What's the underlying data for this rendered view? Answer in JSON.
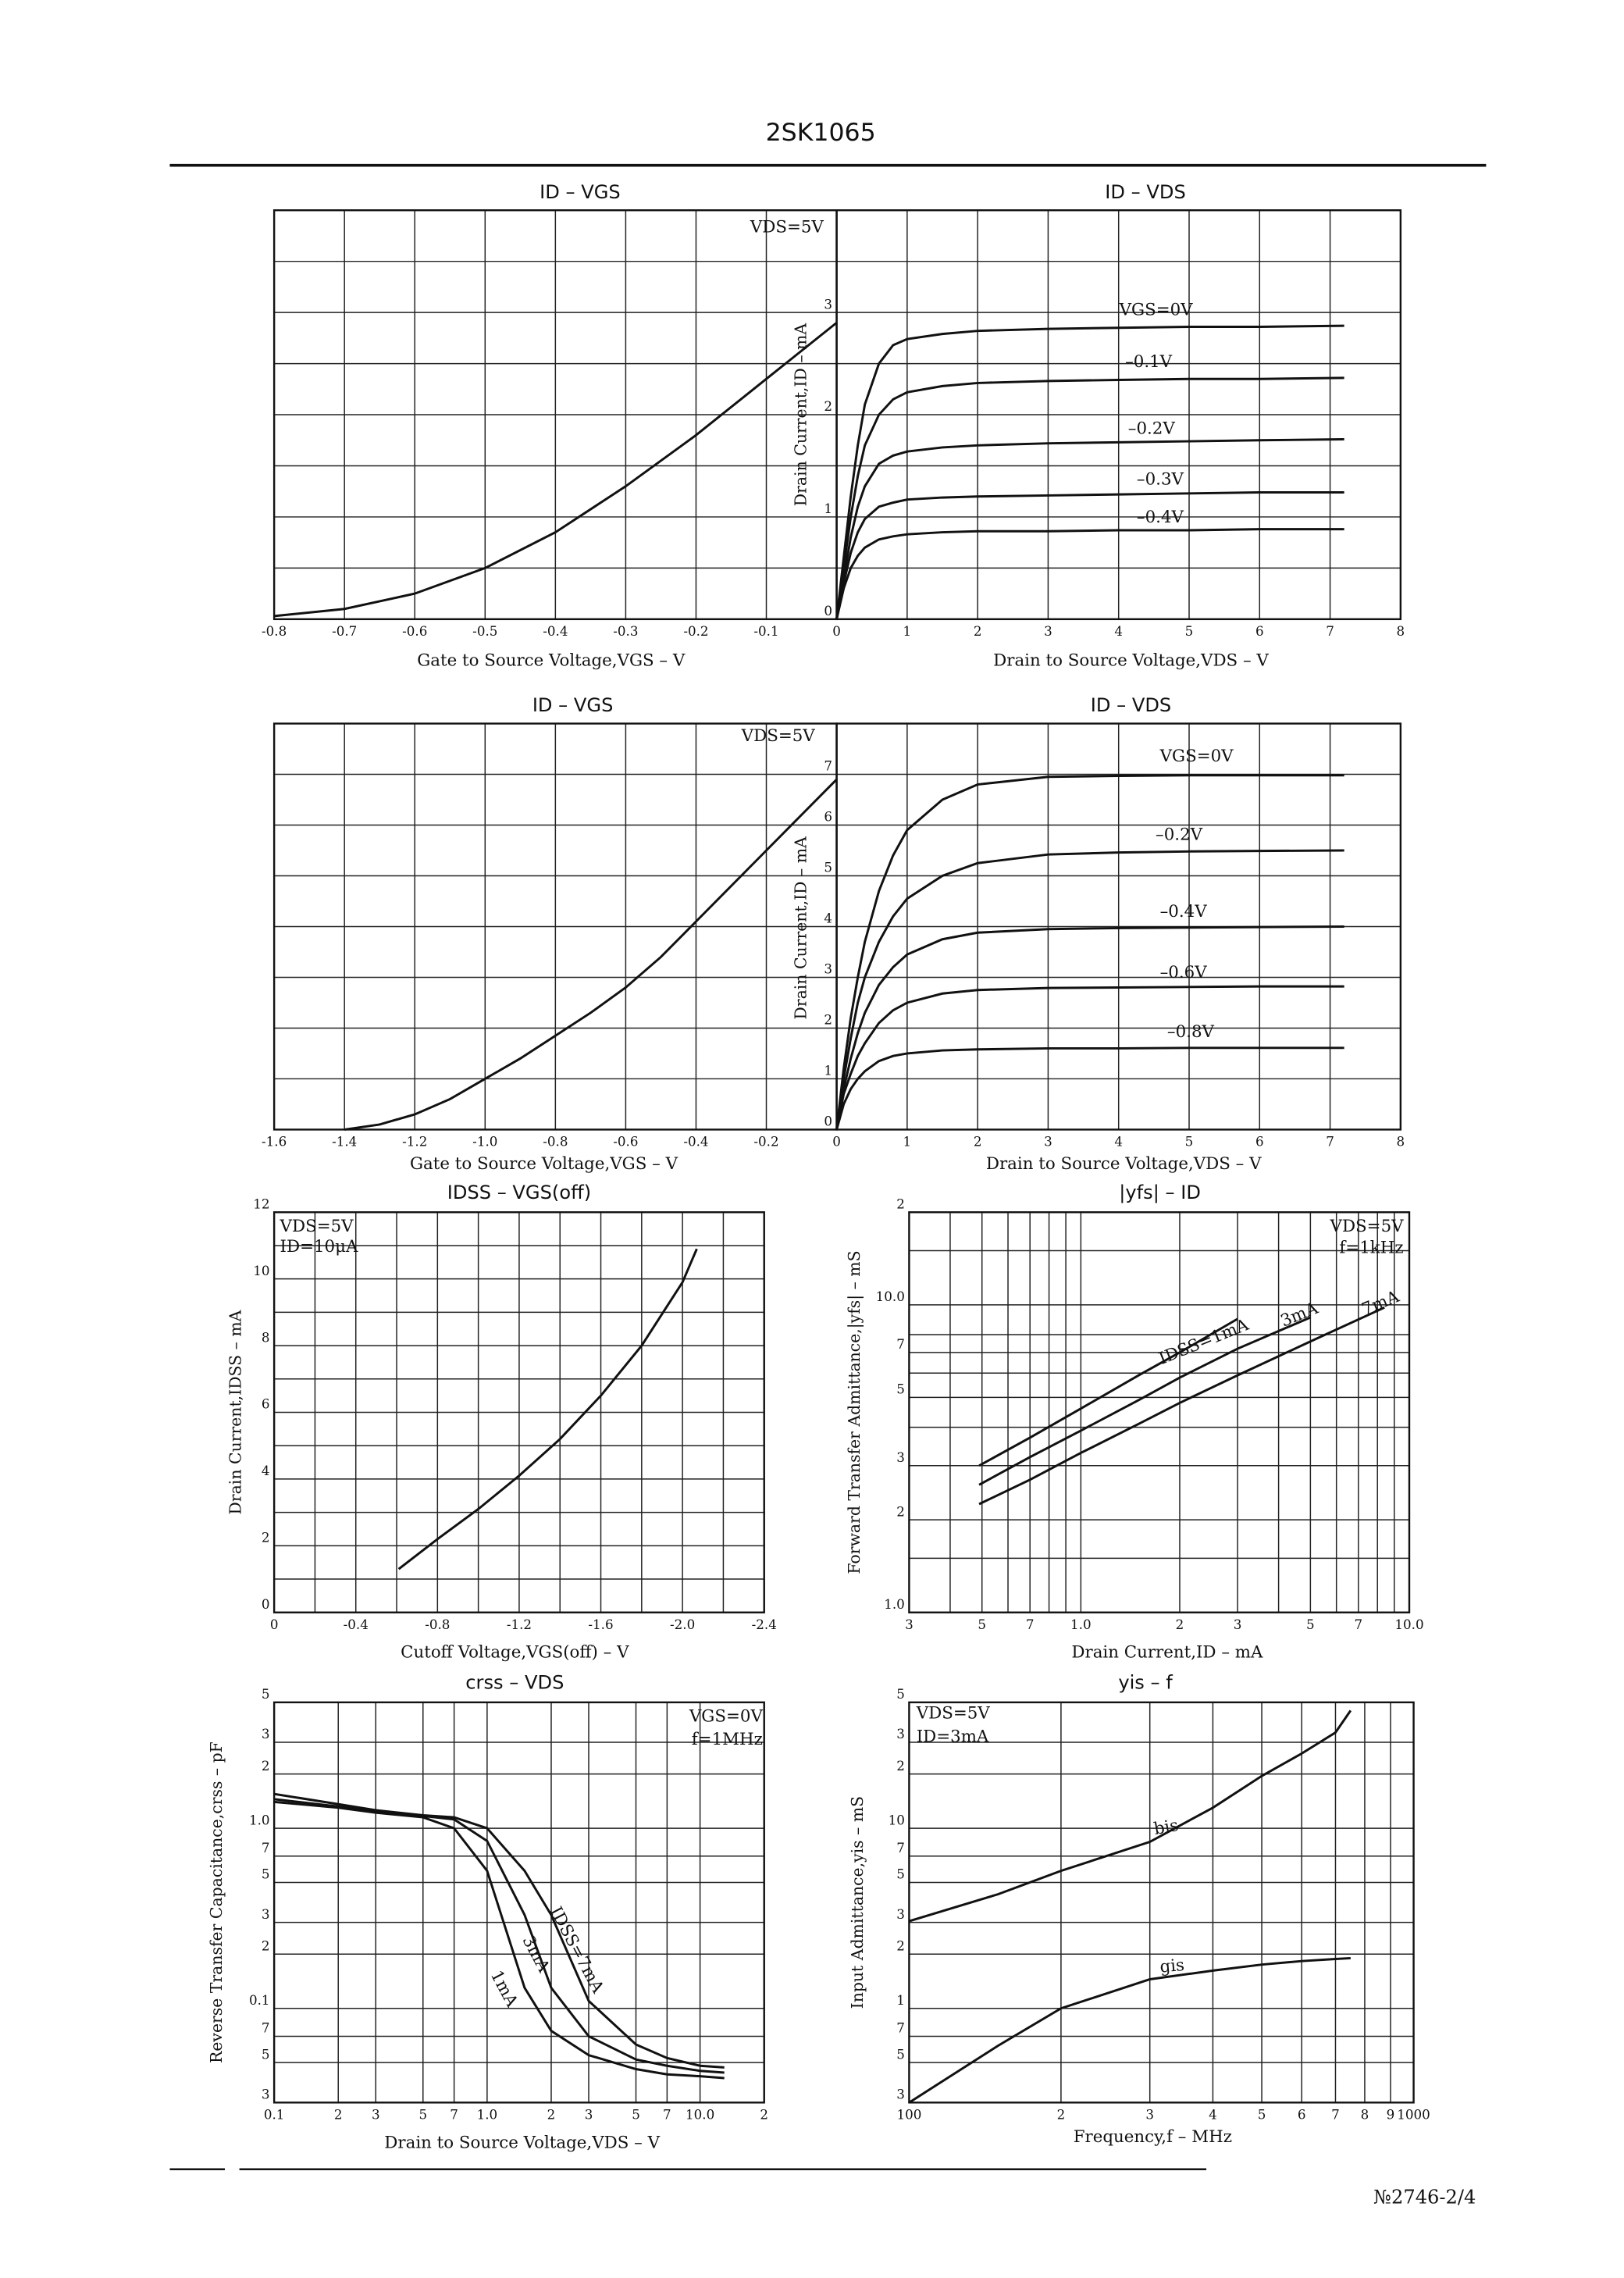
{
  "header": {
    "title": "2SK1065"
  },
  "footer": {
    "page": "№2746-2/4"
  },
  "chart_data": [
    {
      "type": "line",
      "title": "ID – VGS",
      "xlabel": "Gate to Source Voltage,VGS – V",
      "annotations": [
        "VDS=5V"
      ],
      "color": "#111111",
      "grid": true,
      "xlim": [
        -0.8,
        0
      ],
      "ylim": [
        0,
        4
      ],
      "xticks": [
        -0.8,
        -0.7,
        -0.6,
        -0.5,
        -0.4,
        -0.3,
        -0.2,
        -0.1
      ],
      "yticks": [],
      "ygrid": [
        0.5,
        1,
        1.5,
        2,
        2.5,
        3,
        3.5
      ],
      "x": [
        -0.8,
        -0.7,
        -0.6,
        -0.5,
        -0.4,
        -0.3,
        -0.2,
        -0.1,
        0
      ],
      "series": [
        {
          "name": "VDS=5V",
          "values": [
            0.03,
            0.1,
            0.25,
            0.5,
            0.85,
            1.3,
            1.8,
            2.35,
            2.9
          ]
        }
      ]
    },
    {
      "type": "line",
      "title": "ID – VDS",
      "xlabel": "Drain to Source Voltage,VDS – V",
      "ylabel": "Drain Current,ID – mA",
      "color": "#111111",
      "grid": true,
      "xlim": [
        0,
        8
      ],
      "ylim": [
        0,
        4
      ],
      "xticks": [
        0,
        1,
        2,
        3,
        4,
        5,
        6,
        7,
        8
      ],
      "yticks": [
        0,
        1,
        2,
        3
      ],
      "ygrid": [
        0.5,
        1.5,
        2.5,
        3.5
      ],
      "x": [
        0,
        0.1,
        0.2,
        0.3,
        0.4,
        0.6,
        0.8,
        1,
        1.5,
        2,
        3,
        4,
        5,
        6,
        7.2
      ],
      "series": [
        {
          "name": "VGS=0V",
          "values": [
            0,
            0.6,
            1.2,
            1.7,
            2.1,
            2.5,
            2.68,
            2.74,
            2.79,
            2.82,
            2.84,
            2.85,
            2.86,
            2.86,
            2.87
          ]
        },
        {
          "name": "–0.1V",
          "values": [
            0,
            0.5,
            1.0,
            1.4,
            1.7,
            2.0,
            2.15,
            2.22,
            2.28,
            2.31,
            2.33,
            2.34,
            2.35,
            2.35,
            2.36
          ]
        },
        {
          "name": "–0.2V",
          "values": [
            0,
            0.4,
            0.8,
            1.1,
            1.3,
            1.52,
            1.6,
            1.64,
            1.68,
            1.7,
            1.72,
            1.73,
            1.74,
            1.75,
            1.76
          ]
        },
        {
          "name": "–0.3V",
          "values": [
            0,
            0.35,
            0.65,
            0.85,
            0.98,
            1.1,
            1.14,
            1.17,
            1.19,
            1.2,
            1.21,
            1.22,
            1.23,
            1.24,
            1.24
          ]
        },
        {
          "name": "–0.4V",
          "values": [
            0,
            0.3,
            0.5,
            0.62,
            0.7,
            0.78,
            0.81,
            0.83,
            0.85,
            0.86,
            0.86,
            0.87,
            0.87,
            0.88,
            0.88
          ]
        }
      ]
    },
    {
      "type": "line",
      "title": "ID – VGS",
      "xlabel": "Gate to Source Voltage,VGS – V",
      "annotations": [
        "VDS=5V"
      ],
      "color": "#111111",
      "grid": true,
      "xlim": [
        -1.6,
        0
      ],
      "ylim": [
        0,
        8
      ],
      "xticks": [
        -1.6,
        -1.4,
        -1.2,
        {
          "value": -1,
          "label": "-1.0"
        },
        -0.8,
        -0.6,
        -0.4,
        -0.2
      ],
      "yticks": [],
      "ygrid": [
        1,
        2,
        3,
        4,
        5,
        6,
        7
      ],
      "x": [
        -1.4,
        -1.3,
        -1.2,
        -1.1,
        -1.0,
        -0.9,
        -0.8,
        -0.7,
        -0.6,
        -0.5,
        -0.4,
        -0.3,
        -0.2,
        -0.1,
        0
      ],
      "series": [
        {
          "name": "VDS=5V",
          "values": [
            0,
            0.1,
            0.3,
            0.6,
            1.0,
            1.4,
            1.85,
            2.3,
            2.8,
            3.4,
            4.1,
            4.8,
            5.5,
            6.2,
            6.9
          ]
        }
      ]
    },
    {
      "type": "line",
      "title": "ID – VDS",
      "xlabel": "Drain to Source Voltage,VDS – V",
      "ylabel": "Drain Current,ID – mA",
      "color": "#111111",
      "grid": true,
      "xlim": [
        0,
        8
      ],
      "ylim": [
        0,
        8
      ],
      "xticks": [
        0,
        1,
        2,
        3,
        4,
        5,
        6,
        7,
        8
      ],
      "yticks": [
        0,
        1,
        2,
        3,
        4,
        5,
        6,
        7
      ],
      "x": [
        0,
        0.1,
        0.2,
        0.3,
        0.4,
        0.6,
        0.8,
        1,
        1.5,
        2,
        3,
        4,
        5,
        6,
        7.2
      ],
      "series": [
        {
          "name": "VGS=0V",
          "values": [
            0,
            1.2,
            2.2,
            3.0,
            3.7,
            4.7,
            5.4,
            5.9,
            6.5,
            6.8,
            6.95,
            6.97,
            6.98,
            6.98,
            6.98
          ]
        },
        {
          "name": "–0.2V",
          "values": [
            0,
            1.0,
            1.8,
            2.5,
            3.0,
            3.7,
            4.2,
            4.55,
            5.0,
            5.25,
            5.42,
            5.46,
            5.48,
            5.49,
            5.5
          ]
        },
        {
          "name": "–0.4V",
          "values": [
            0,
            0.8,
            1.4,
            1.9,
            2.3,
            2.85,
            3.2,
            3.45,
            3.75,
            3.88,
            3.95,
            3.97,
            3.98,
            3.99,
            4.0
          ]
        },
        {
          "name": "–0.6V",
          "values": [
            0,
            0.7,
            1.1,
            1.45,
            1.7,
            2.1,
            2.35,
            2.5,
            2.68,
            2.75,
            2.79,
            2.8,
            2.81,
            2.82,
            2.82
          ]
        },
        {
          "name": "–0.8V",
          "values": [
            0,
            0.5,
            0.8,
            1.0,
            1.15,
            1.35,
            1.45,
            1.5,
            1.56,
            1.58,
            1.6,
            1.6,
            1.61,
            1.61,
            1.61
          ]
        }
      ]
    },
    {
      "type": "line",
      "title": "IDSS – VGS(off)",
      "xlabel": "Cutoff Voltage,VGS(off) – V",
      "ylabel": "Drain Current,IDSS – mA",
      "annotations": [
        "VDS=5V",
        "ID=10μA"
      ],
      "color": "#111111",
      "grid": true,
      "xlim": [
        0,
        -2.4
      ],
      "ylim": [
        0,
        12
      ],
      "xticks": [
        0,
        -0.4,
        -0.8,
        -1.2,
        -1.6,
        {
          "value": -2,
          "label": "-2.0"
        },
        -2.4
      ],
      "yticks": [
        0,
        2,
        4,
        6,
        8,
        10,
        12
      ],
      "xgrid": [
        -0.2,
        -0.6,
        -1.0,
        -1.4,
        -1.8,
        -2.2
      ],
      "ygrid": [
        1,
        3,
        5,
        7,
        9,
        11
      ],
      "x": [
        -0.61,
        -0.8,
        -1.0,
        -1.2,
        -1.4,
        -1.6,
        -1.8,
        -2.0,
        -2.07
      ],
      "series": [
        {
          "name": "VDS=5V",
          "values": [
            1.3,
            2.2,
            3.1,
            4.1,
            5.2,
            6.5,
            8.0,
            9.9,
            10.9
          ]
        }
      ]
    },
    {
      "type": "line",
      "title": "|yfs| – ID",
      "xlabel": "Drain Current,ID – mA",
      "ylabel": "Forward Transfer Admittance,|yfs| – mS",
      "annotations": [
        "VDS=5V",
        "f=1kHz"
      ],
      "color": "#111111",
      "grid": true,
      "xscale": "log",
      "yscale": "log",
      "xlim": [
        0.3,
        10
      ],
      "ylim": [
        1,
        20
      ],
      "xticks": [
        {
          "value": 0.3,
          "label": "3"
        },
        {
          "value": 0.5,
          "label": "5"
        },
        {
          "value": 0.7,
          "label": "7"
        },
        {
          "value": 1,
          "label": "1.0"
        },
        2,
        3,
        5,
        7,
        {
          "value": 10,
          "label": "10.0"
        }
      ],
      "yticks": [
        {
          "value": 1,
          "label": "1.0"
        },
        2,
        3,
        5,
        7,
        {
          "value": 10,
          "label": "10.0"
        },
        {
          "value": 20,
          "label": "2"
        }
      ],
      "xgrid": [
        0.4,
        0.6,
        0.8,
        0.9,
        4,
        6,
        8,
        9
      ],
      "ygrid": [
        1.5,
        4,
        6,
        8,
        15
      ],
      "x": [
        0.49,
        0.7,
        1,
        1.5,
        2,
        3,
        5,
        8.4
      ],
      "series": [
        {
          "name": "IDSS=1mA",
          "values": [
            3.0,
            3.7,
            4.6,
            5.9,
            7.0,
            9.0,
            null,
            null
          ]
        },
        {
          "name": "3mA",
          "values": [
            2.6,
            3.2,
            3.9,
            4.9,
            5.8,
            7.2,
            9.1,
            null
          ]
        },
        {
          "name": "7mA",
          "values": [
            2.25,
            2.7,
            3.3,
            4.1,
            4.8,
            5.9,
            7.6,
            9.8
          ]
        }
      ]
    },
    {
      "type": "line",
      "title": "crss – VDS",
      "xlabel": "Drain to Source Voltage,VDS – V",
      "ylabel": "Reverse Transfer Capacitance,crss – pF",
      "annotations": [
        "VGS=0V",
        "f=1MHz"
      ],
      "color": "#111111",
      "grid": true,
      "xscale": "log",
      "yscale": "log",
      "xlim": [
        0.1,
        20
      ],
      "ylim": [
        0.03,
        5
      ],
      "xticks": [
        0.1,
        {
          "value": 0.2,
          "label": "2"
        },
        {
          "value": 0.3,
          "label": "3"
        },
        {
          "value": 0.5,
          "label": "5"
        },
        {
          "value": 0.7,
          "label": "7"
        },
        {
          "value": 1,
          "label": "1.0"
        },
        2,
        3,
        5,
        7,
        {
          "value": 10,
          "label": "10.0"
        },
        {
          "value": 20,
          "label": "2"
        }
      ],
      "yticks": [
        {
          "value": 0.03,
          "label": "3"
        },
        {
          "value": 0.05,
          "label": "5"
        },
        {
          "value": 0.07,
          "label": "7"
        },
        0.1,
        {
          "value": 0.2,
          "label": "2"
        },
        {
          "value": 0.3,
          "label": "3"
        },
        {
          "value": 0.5,
          "label": "5"
        },
        {
          "value": 0.7,
          "label": "7"
        },
        {
          "value": 1,
          "label": "1.0"
        },
        2,
        3,
        5
      ],
      "x": [
        0.1,
        0.2,
        0.3,
        0.5,
        0.7,
        1,
        1.5,
        2,
        3,
        5,
        7,
        10,
        13
      ],
      "series": [
        {
          "name": "IDSS=7mA",
          "values": [
            1.55,
            1.36,
            1.26,
            1.18,
            1.15,
            1.0,
            0.58,
            0.33,
            0.11,
            0.063,
            0.053,
            0.048,
            0.047
          ]
        },
        {
          "name": "3mA",
          "values": [
            1.45,
            1.32,
            1.24,
            1.17,
            1.12,
            0.85,
            0.33,
            0.13,
            0.07,
            0.052,
            0.048,
            0.045,
            0.044
          ]
        },
        {
          "name": "1mA",
          "values": [
            1.4,
            1.3,
            1.22,
            1.15,
            1.0,
            0.58,
            0.13,
            0.075,
            0.055,
            0.046,
            0.043,
            0.042,
            0.041
          ]
        }
      ]
    },
    {
      "type": "line",
      "title": "yis – f",
      "xlabel": "Frequency,f – MHz",
      "ylabel": "Input Admittance,yis – mS",
      "annotations": [
        "VDS=5V",
        "ID=3mA"
      ],
      "color": "#111111",
      "grid": true,
      "xscale": "log",
      "yscale": "log",
      "xlim": [
        100,
        1000
      ],
      "ylim": [
        0.3,
        50
      ],
      "xticks": [
        100,
        {
          "value": 200,
          "label": "2"
        },
        {
          "value": 300,
          "label": "3"
        },
        {
          "value": 400,
          "label": "4"
        },
        {
          "value": 500,
          "label": "5"
        },
        {
          "value": 600,
          "label": "6"
        },
        {
          "value": 700,
          "label": "7"
        },
        {
          "value": 800,
          "label": "8"
        },
        {
          "value": 900,
          "label": "9"
        },
        1000
      ],
      "yticks": [
        {
          "value": 0.3,
          "label": "3"
        },
        {
          "value": 0.5,
          "label": "5"
        },
        {
          "value": 0.7,
          "label": "7"
        },
        1,
        2,
        3,
        5,
        7,
        10,
        {
          "value": 20,
          "label": "2"
        },
        {
          "value": 30,
          "label": "3"
        },
        {
          "value": 50,
          "label": "5"
        }
      ],
      "x": [
        100,
        150,
        200,
        300,
        400,
        500,
        600,
        700,
        750
      ],
      "series": [
        {
          "name": "bis",
          "values": [
            3.05,
            4.3,
            5.8,
            8.4,
            13,
            19.5,
            26,
            34,
            45
          ]
        },
        {
          "name": "gis",
          "values": [
            0.3,
            0.62,
            1.0,
            1.45,
            1.62,
            1.75,
            1.83,
            1.88,
            1.9
          ]
        }
      ]
    }
  ]
}
